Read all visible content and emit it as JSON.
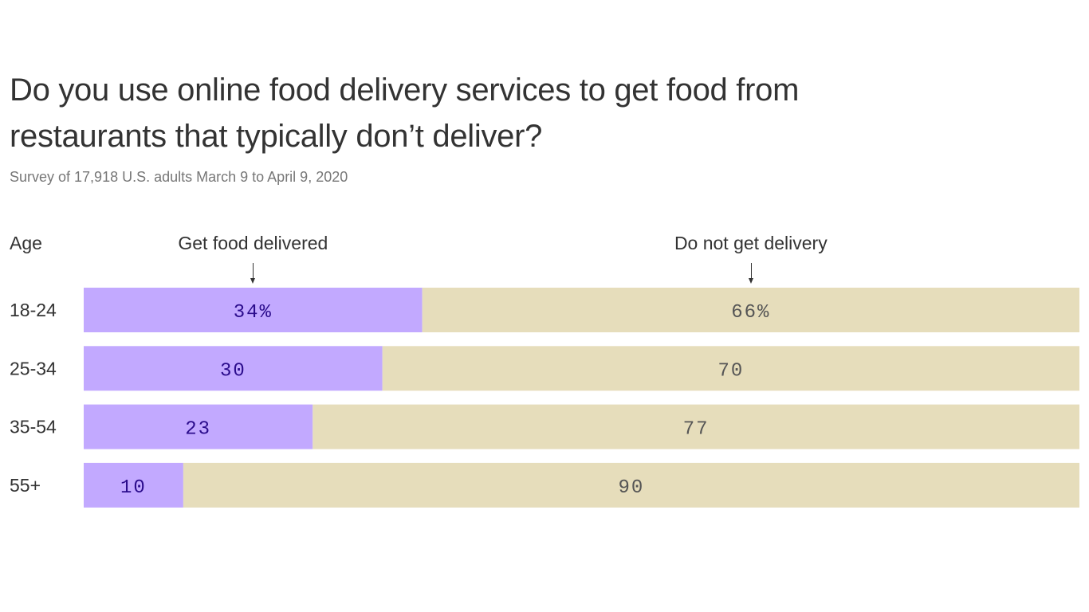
{
  "chart_data": {
    "type": "bar",
    "orientation": "horizontal",
    "stacked": true,
    "title": "Do you use online food delivery services to get food from restaurants that typically don’t deliver?",
    "subtitle": "Survey of 17,918 U.S. adults March 9 to April 9, 2020",
    "ylabel": "Age",
    "categories": [
      "18-24",
      "25-34",
      "35-54",
      "55+"
    ],
    "series": [
      {
        "name": "Get food delivered",
        "values": [
          34,
          30,
          23,
          10
        ],
        "labels": [
          "34%",
          "30",
          "23",
          "10"
        ],
        "color": "#c2a9ff",
        "label_color": "#2b0c8c"
      },
      {
        "name": "Do not get delivery",
        "values": [
          66,
          70,
          77,
          90
        ],
        "labels": [
          "66%",
          "70",
          "77",
          "90"
        ],
        "color": "#e6ddbb",
        "label_color": "#555555"
      }
    ],
    "xlim": [
      0,
      100
    ],
    "grid": false,
    "legend": "top, labels with arrows above first bar"
  }
}
